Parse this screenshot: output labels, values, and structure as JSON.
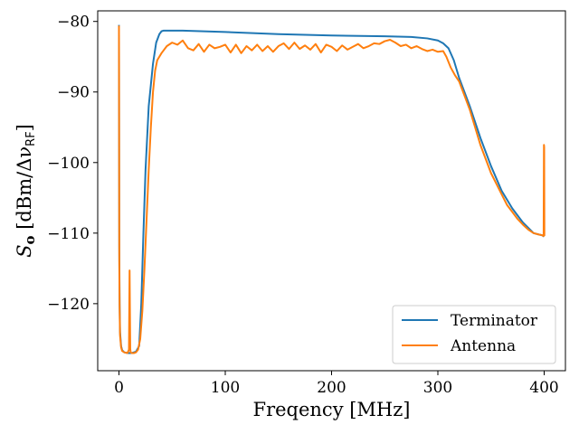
{
  "chart_data": {
    "type": "line",
    "xlabel": "Freqency [MHz]",
    "ylabel": "S_o [dBm/Δν_RF]",
    "ylabel_parts": {
      "symbol": "S",
      "subscript": "o",
      "bracket_open": " [dBm/Δν",
      "rf_sub": "RF",
      "bracket_close": "]"
    },
    "xlim": [
      -20,
      420
    ],
    "ylim": [
      -129.5,
      -78.5
    ],
    "xticks": [
      0,
      100,
      200,
      300,
      400
    ],
    "yticks": [
      -120,
      -110,
      -100,
      -90,
      -80
    ],
    "ytick_labels": [
      "−120",
      "−110",
      "−100",
      "−90",
      "−80"
    ],
    "grid": false,
    "legend_position": "lower-right",
    "series": [
      {
        "name": "Terminator",
        "color": "#1f77b4",
        "x": [
          0,
          0.3,
          0.6,
          1,
          2,
          3,
          5,
          8,
          12,
          16,
          19,
          21,
          23,
          25,
          28,
          32,
          35,
          38,
          40,
          42,
          45,
          60,
          100,
          150,
          200,
          250,
          275,
          290,
          300,
          305,
          310,
          315,
          320,
          330,
          340,
          350,
          360,
          370,
          380,
          390,
          395,
          398,
          400
        ],
        "y": [
          -80.5,
          -112,
          -120,
          -124,
          -126,
          -126.6,
          -126.9,
          -127.0,
          -127.0,
          -126.8,
          -126.0,
          -120,
          -110,
          -101,
          -92,
          -86,
          -83,
          -81.8,
          -81.4,
          -81.3,
          -81.3,
          -81.3,
          -81.5,
          -81.8,
          -82.0,
          -82.1,
          -82.2,
          -82.4,
          -82.7,
          -83.1,
          -83.8,
          -85.5,
          -88,
          -92,
          -96.5,
          -100.5,
          -104,
          -106.5,
          -108.5,
          -110,
          -110.2,
          -110.3,
          -110.5
        ]
      },
      {
        "name": "Antenna",
        "color": "#ff7f0e",
        "x": [
          0,
          0.3,
          0.6,
          1,
          2,
          3,
          5,
          8,
          9.4,
          10,
          10.6,
          11,
          12,
          14,
          16,
          18,
          20,
          22,
          24,
          26,
          28,
          30,
          32,
          34,
          36,
          40,
          45,
          50,
          55,
          60,
          65,
          70,
          75,
          80,
          85,
          90,
          95,
          100,
          105,
          110,
          115,
          120,
          125,
          130,
          135,
          140,
          145,
          150,
          155,
          160,
          165,
          170,
          175,
          180,
          185,
          190,
          195,
          200,
          205,
          210,
          215,
          220,
          225,
          230,
          235,
          240,
          245,
          250,
          255,
          260,
          265,
          270,
          275,
          280,
          285,
          290,
          295,
          300,
          305,
          308,
          312,
          316,
          320,
          325,
          330,
          335,
          340,
          345,
          350,
          355,
          360,
          365,
          370,
          375,
          380,
          385,
          390,
          395,
          398,
          399.5,
          399.8,
          400,
          400.2,
          400.5
        ],
        "y": [
          -80.6,
          -114,
          -120.5,
          -124.5,
          -126.2,
          -126.7,
          -126.9,
          -127.0,
          -126.5,
          -115.3,
          -126.4,
          -126.9,
          -127.0,
          -127.0,
          -126.9,
          -126.5,
          -125.0,
          -121,
          -115,
          -108,
          -101,
          -95,
          -90,
          -87,
          -85.5,
          -84.5,
          -83.5,
          -83.0,
          -83.3,
          -82.7,
          -83.8,
          -84.1,
          -83.2,
          -84.3,
          -83.3,
          -83.8,
          -83.6,
          -83.3,
          -84.4,
          -83.3,
          -84.5,
          -83.5,
          -84.1,
          -83.3,
          -84.2,
          -83.5,
          -84.3,
          -83.5,
          -83.1,
          -83.9,
          -83.0,
          -83.9,
          -83.4,
          -84.0,
          -83.2,
          -84.4,
          -83.3,
          -83.6,
          -84.2,
          -83.4,
          -84.0,
          -83.6,
          -83.2,
          -83.8,
          -83.5,
          -83.1,
          -83.2,
          -82.8,
          -82.6,
          -83.0,
          -83.5,
          -83.3,
          -83.8,
          -83.5,
          -83.9,
          -84.2,
          -84.0,
          -84.3,
          -84.2,
          -85.0,
          -86.5,
          -87.6,
          -88.5,
          -90.5,
          -92.5,
          -95,
          -97.5,
          -99.5,
          -101.5,
          -103,
          -104.5,
          -106,
          -107,
          -108,
          -108.8,
          -109.5,
          -110,
          -110.2,
          -110.3,
          -110.4,
          -97.5,
          -97.8,
          -110.3,
          -110.4
        ]
      }
    ]
  }
}
